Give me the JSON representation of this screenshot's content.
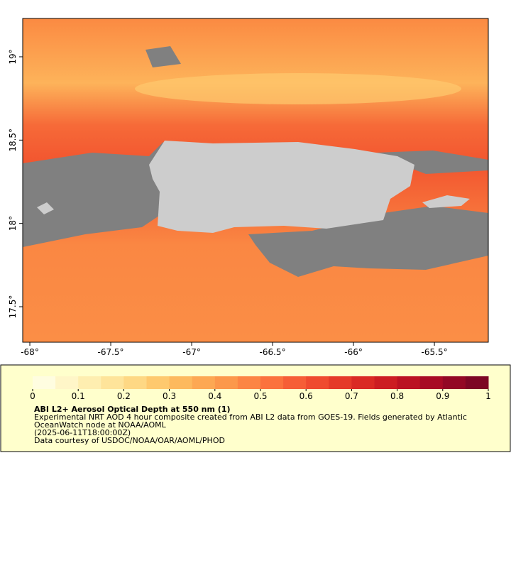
{
  "map": {
    "xlim": [
      -68.044,
      -65.167
    ],
    "ylim": [
      17.287,
      19.23
    ],
    "lon_ticks": [
      {
        "value": -68,
        "label": "-68°"
      },
      {
        "value": -67.5,
        "label": "-67.5°"
      },
      {
        "value": -67,
        "label": "-67°"
      },
      {
        "value": -66.5,
        "label": "-66.5°"
      },
      {
        "value": -66,
        "label": "-66°"
      },
      {
        "value": -65.5,
        "label": "-65.5°"
      }
    ],
    "lat_ticks": [
      {
        "value": 19,
        "label": "19°"
      },
      {
        "value": 18.5,
        "label": "18.5°"
      },
      {
        "value": 18,
        "label": "18°"
      },
      {
        "value": 17.5,
        "label": "17.5°"
      }
    ]
  },
  "colorbar": {
    "range": [
      0,
      1
    ],
    "ticks": [
      0,
      0.1,
      0.2,
      0.3,
      0.4,
      0.5,
      0.6,
      0.7,
      0.8,
      0.9,
      1
    ],
    "colors": [
      "#fffde0",
      "#fff6c8",
      "#feeeb0",
      "#fee49a",
      "#fed884",
      "#fec96e",
      "#fdb95e",
      "#fda853",
      "#fc984b",
      "#fc8544",
      "#fb723d",
      "#f65e36",
      "#ef4b2f",
      "#e53a29",
      "#da2a24",
      "#cc1d22",
      "#bb1222",
      "#a80b24",
      "#930824",
      "#7d0624"
    ]
  },
  "caption": {
    "title": "ABI L2+ Aerosol Optical Depth at 550 nm (1)",
    "lines": [
      "Experimental NRT AOD 4 hour composite created from ABI L2 data from GOES-19. Fields generated by Atlantic OceanWatch node at NOAA/AOML",
      "(2025-06-11T18:00:00Z)",
      "Data courtesy of USDOC/NOAA/OAR/AOML/PHOD"
    ]
  }
}
